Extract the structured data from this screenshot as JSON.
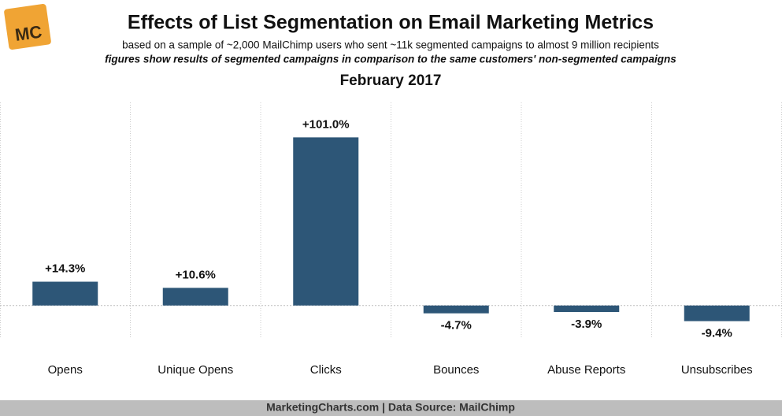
{
  "logo": "MC",
  "chart_data": {
    "type": "bar",
    "title": "Effects of List Segmentation on Email Marketing Metrics",
    "subtitle": "based on a sample of ~2,000 MailChimp users who sent ~11k segmented campaigns to almost 9 million recipients",
    "note": "figures show results of segmented campaigns in comparison to the same customers' non-segmented campaigns",
    "period": "February 2017",
    "categories": [
      "Opens",
      "Unique Opens",
      "Clicks",
      "Bounces",
      "Abuse Reports",
      "Unsubscribes"
    ],
    "values": [
      14.3,
      10.6,
      101.0,
      -4.7,
      -3.9,
      -9.4
    ],
    "value_labels": [
      "+14.3%",
      "+10.6%",
      "+101.0%",
      "-4.7%",
      "-3.9%",
      "-9.4%"
    ],
    "color": "#2d5677",
    "ylim": [
      -20,
      122
    ],
    "source": "MarketingCharts.com | Data Source: MailChimp"
  }
}
